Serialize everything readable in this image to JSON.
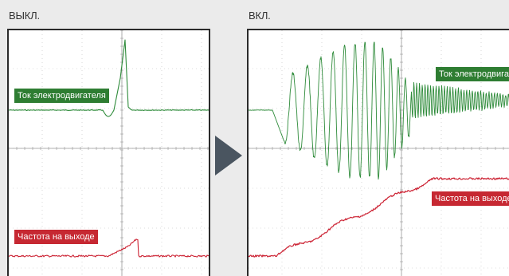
{
  "captions": {
    "off": "ВЫКЛ.",
    "on": "ВКЛ."
  },
  "labels": {
    "current": "Ток электродвигателя",
    "frequency": "Частота на выходе"
  },
  "colors": {
    "current": "#2e8b3a",
    "frequency": "#cc2233",
    "label_current_bg": "#2e7d32",
    "label_frequency_bg": "#c62832",
    "grid": "#bdbdbd",
    "arrow": "#4a5560"
  },
  "icons": {
    "arrow": "play-arrow-icon"
  }
}
